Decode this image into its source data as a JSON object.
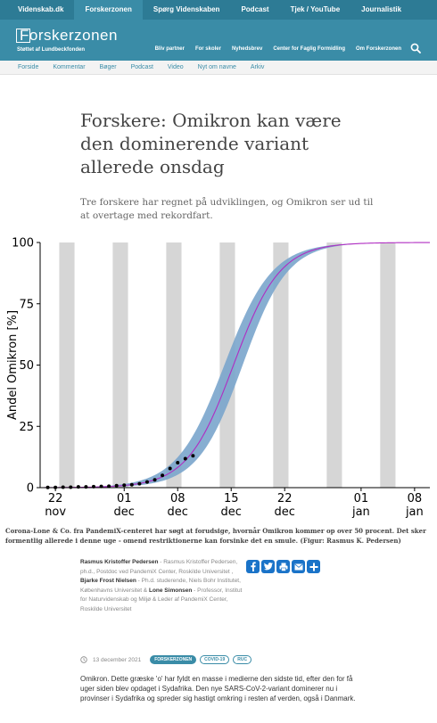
{
  "topbar": {
    "tabs": [
      {
        "label": "Videnskab.dk",
        "active": false
      },
      {
        "label": "Forskerzonen",
        "active": true
      },
      {
        "label": "Spørg Videnskaben",
        "active": false
      },
      {
        "label": "Podcast",
        "active": false
      },
      {
        "label": "Tjek / YouTube",
        "active": false
      },
      {
        "label": "Journalistik",
        "active": false
      }
    ]
  },
  "brand": {
    "logo_text": "Forskerzonen",
    "tagline": "Støttet af Lundbeckfonden",
    "nav": [
      "Bliv partner",
      "For skoler",
      "Nyhedsbrev",
      "Center for Faglig Formidling",
      "Om Forskerzonen"
    ],
    "search_icon": "search-icon"
  },
  "subnav": [
    "Forside",
    "Kommentar",
    "Bøger",
    "Podcast",
    "Video",
    "Nyt om navne",
    "Arkiv"
  ],
  "article": {
    "title": "Forskere: Omikron kan være den dominerende variant allerede onsdag",
    "lead": "Tre forskere har regnet på udviklingen, og Omikron ser ud til at overtage med rekordfart.",
    "caption": "Corona-Lone & Co. fra PandemiX-centeret har søgt at forudsige, hvornår Omikron kommer op over 50 procent. Det sker formentlig allerede i denne uge - omend restriktionerne kan forsinke det en smule. (Figur: Rasmus K. Pedersen)",
    "authors": [
      {
        "name": "Rasmus Kristoffer Pedersen",
        "desc": " - Rasmus Kristoffer Pedersen, ph.d., Postdoc ved PandemiX Center, Roskilde Universitet"
      },
      {
        "name": "Bjarke Frost Nielsen",
        "desc": " - Ph.d. studerende, Niels Bohr Institutet, Københavns Universitet &"
      },
      {
        "name": "Lone Simonsen",
        "desc": " - Professor, Institut for Naturvidenskab og Miljø & Leder af PandemiX Center, Roskilde Universitet"
      }
    ],
    "date": "13 december 2021",
    "tags": [
      "FORSKERZONEN",
      "COVID-19",
      "RUC"
    ],
    "body": "Omikron. Dette græske 'o' har fyldt en masse i medierne den sidste tid, efter den for få uger siden blev opdaget i Sydafrika. Den nye SARS-CoV-2-variant dominerer nu i provinser i Sydafrika og spreder sig hastigt omkring i resten af verden, også i Danmark."
  },
  "share_buttons": [
    "facebook-icon",
    "twitter-icon",
    "print-icon",
    "email-icon",
    "plus-icon"
  ],
  "colors": {
    "topbar": "#2d7b95",
    "brand": "#3a8ca7",
    "band": "#7aa5cc",
    "curve": "#b02dc2",
    "stripes": "#d6d6d6",
    "share": "#1a73c8"
  },
  "chart_data": {
    "type": "line",
    "title": "",
    "ylabel": "Andel Omikron [%]",
    "xlabel": "",
    "ylim": [
      0,
      100
    ],
    "yticks": [
      0,
      25,
      50,
      75,
      100
    ],
    "xticks": [
      {
        "day": -9,
        "label": "22\nnov"
      },
      {
        "day": 0,
        "label": "01\ndec"
      },
      {
        "day": 7,
        "label": "08\ndec"
      },
      {
        "day": 14,
        "label": "15\ndec"
      },
      {
        "day": 21,
        "label": "22\ndec"
      },
      {
        "day": 31,
        "label": "01\njan"
      },
      {
        "day": 38,
        "label": "08\njan"
      }
    ],
    "xlim": [
      -11,
      40
    ],
    "model": {
      "midpoint_day": 14.3,
      "growth_rate": 0.33
    },
    "observed": [
      {
        "day": -10,
        "y": 0.1
      },
      {
        "day": -9,
        "y": 0.1
      },
      {
        "day": -8,
        "y": 0.2
      },
      {
        "day": -7,
        "y": 0.2
      },
      {
        "day": -6,
        "y": 0.3
      },
      {
        "day": -5,
        "y": 0.3
      },
      {
        "day": -4,
        "y": 0.4
      },
      {
        "day": -3,
        "y": 0.5
      },
      {
        "day": -2,
        "y": 0.6
      },
      {
        "day": -1,
        "y": 0.8
      },
      {
        "day": 0,
        "y": 1.0
      },
      {
        "day": 1,
        "y": 1.2
      },
      {
        "day": 2,
        "y": 1.6
      },
      {
        "day": 3,
        "y": 2.3
      },
      {
        "day": 4,
        "y": 3.2
      },
      {
        "day": 5,
        "y": 5.0
      },
      {
        "day": 6,
        "y": 7.8
      },
      {
        "day": 7,
        "y": 10.2
      },
      {
        "day": 8,
        "y": 11.8
      },
      {
        "day": 9,
        "y": 13.0
      }
    ]
  }
}
